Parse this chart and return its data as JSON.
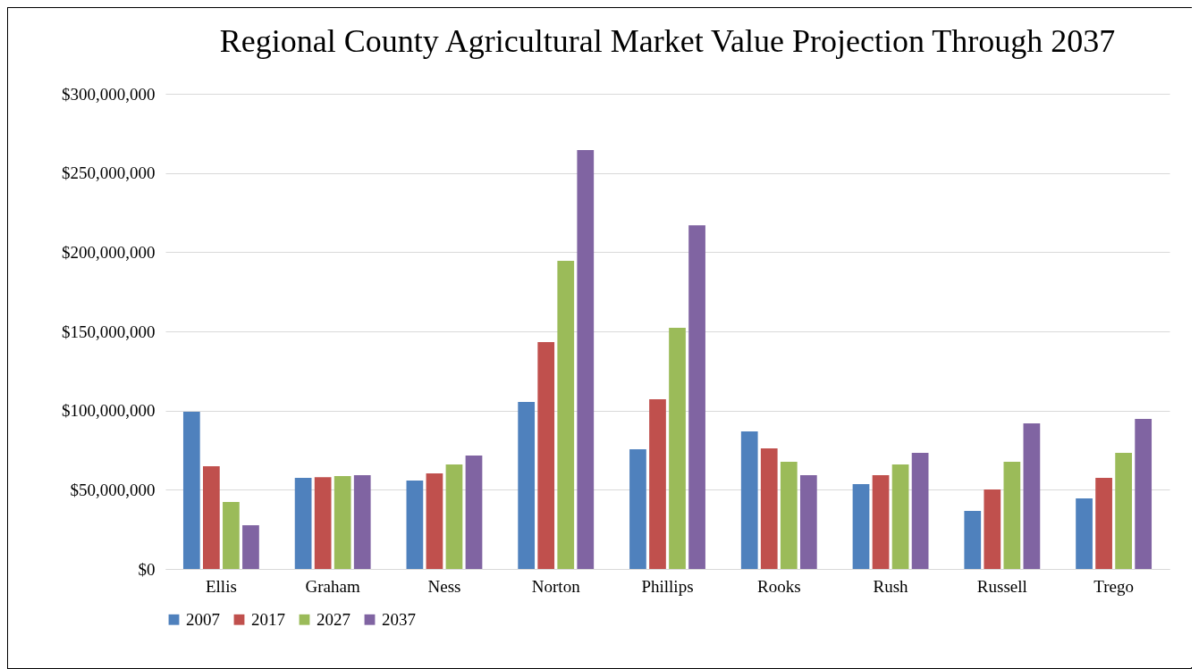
{
  "chart_data": {
    "type": "bar",
    "title": "Regional County Agricultural Market Value Projection Through 2037",
    "categories": [
      "Ellis",
      "Graham",
      "Ness",
      "Norton",
      "Phillips",
      "Rooks",
      "Rush",
      "Russell",
      "Trego"
    ],
    "series": [
      {
        "name": "2007",
        "color": "#4f81bd",
        "values": [
          99300000,
          57500000,
          55800000,
          105500000,
          75600000,
          86900000,
          53600000,
          36700000,
          44600000
        ]
      },
      {
        "name": "2017",
        "color": "#c0504d",
        "values": [
          64900000,
          58000000,
          60300000,
          143300000,
          107200000,
          76100000,
          59200000,
          50200000,
          57500000
        ]
      },
      {
        "name": "2027",
        "color": "#9bbb59",
        "values": [
          42300000,
          58700000,
          66000000,
          194600000,
          152300000,
          67700000,
          66000000,
          67700000,
          73300000
        ]
      },
      {
        "name": "2037",
        "color": "#8064a2",
        "values": [
          27600000,
          59200000,
          71600000,
          264500000,
          217000000,
          59200000,
          73300000,
          91900000,
          94800000
        ]
      }
    ],
    "ylim": [
      0,
      300000000
    ],
    "yticks": [
      {
        "value": 0,
        "label": "$0"
      },
      {
        "value": 50000000,
        "label": "$50,000,000"
      },
      {
        "value": 100000000,
        "label": "$100,000,000"
      },
      {
        "value": 150000000,
        "label": "$150,000,000"
      },
      {
        "value": 200000000,
        "label": "$200,000,000"
      },
      {
        "value": 250000000,
        "label": "$250,000,000"
      },
      {
        "value": 300000000,
        "label": "$300,000,000"
      }
    ],
    "grid": "y",
    "legend": "bottom"
  }
}
